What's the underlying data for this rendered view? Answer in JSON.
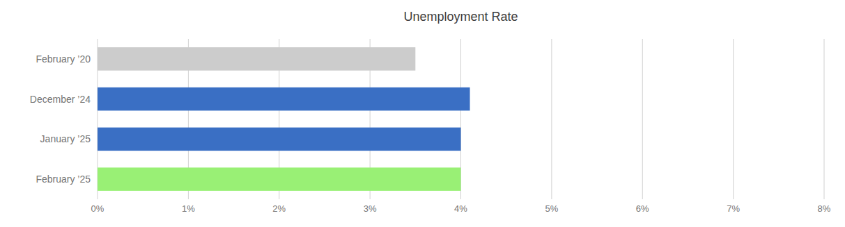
{
  "chart_data": {
    "type": "bar",
    "orientation": "horizontal",
    "title": "Unemployment Rate",
    "categories": [
      "February ’20",
      "December ’24",
      "January ’25",
      "February ’25"
    ],
    "values": [
      0.035,
      0.041,
      0.04,
      0.04
    ],
    "colors": [
      "#cccccc",
      "#3a6fc4",
      "#3a6fc4",
      "#99f075"
    ],
    "xlim": [
      0,
      0.08
    ],
    "xticks": [
      {
        "value": 0,
        "label": "0%"
      },
      {
        "value": 0.01,
        "label": "1%"
      },
      {
        "value": 0.02,
        "label": "2%"
      },
      {
        "value": 0.03,
        "label": "3%"
      },
      {
        "value": 0.04,
        "label": "4%"
      },
      {
        "value": 0.05,
        "label": "5%"
      },
      {
        "value": 0.06,
        "label": "6%"
      },
      {
        "value": 0.07,
        "label": "7%"
      },
      {
        "value": 0.08,
        "label": "8%"
      }
    ],
    "grid": true
  }
}
